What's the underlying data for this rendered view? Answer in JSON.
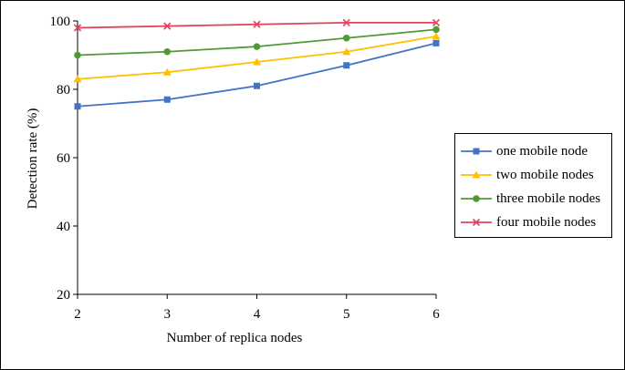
{
  "chart_data": {
    "type": "line",
    "title": "",
    "xlabel": "Number of replica nodes",
    "ylabel": "Detection rate (%)",
    "x": [
      2,
      3,
      4,
      5,
      6
    ],
    "xticks": [
      "2",
      "3",
      "4",
      "5",
      "6"
    ],
    "ylim": [
      20,
      100
    ],
    "yticks": [
      "20",
      "40",
      "60",
      "80",
      "100"
    ],
    "grid": false,
    "legend_position": "right",
    "series": [
      {
        "name": "one mobile node",
        "values": [
          75,
          77,
          81,
          87,
          93.5
        ],
        "color": "#4472C4",
        "marker": "square"
      },
      {
        "name": "two mobile nodes",
        "values": [
          83,
          85,
          88,
          91,
          95.5
        ],
        "color": "#FFC000",
        "marker": "triangle"
      },
      {
        "name": "three mobile nodes",
        "values": [
          90,
          91,
          92.5,
          95,
          97.5
        ],
        "color": "#4E9A34",
        "marker": "circle"
      },
      {
        "name": "four mobile nodes",
        "values": [
          98,
          98.5,
          99,
          99.5,
          99.5
        ],
        "color": "#E0435A",
        "marker": "x"
      }
    ]
  }
}
